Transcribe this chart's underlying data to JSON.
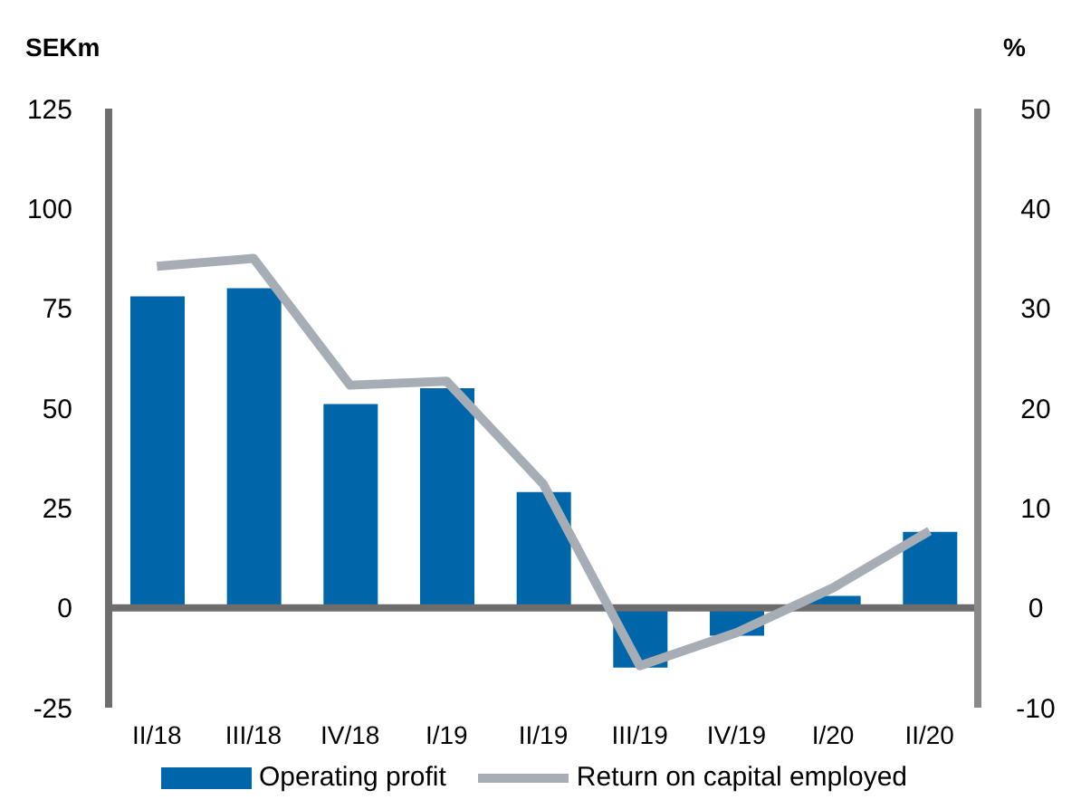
{
  "chart_data": {
    "type": "bar",
    "categories": [
      "II/18",
      "III/18",
      "IV/18",
      "I/19",
      "II/19",
      "III/19",
      "IV/19",
      "I/20",
      "II/20"
    ],
    "series": [
      {
        "name": "Operating profit",
        "color": "#0066aa",
        "values": [
          78,
          80,
          51,
          55,
          29,
          -15,
          -7,
          3,
          19
        ]
      },
      {
        "name": "Return on capital employed",
        "type": "line",
        "axis": "y2",
        "color": "#a6adb4",
        "values": [
          34.2,
          35,
          22.3,
          22.7,
          12.4,
          -5.8,
          -2.5,
          2,
          7.7
        ]
      }
    ],
    "ylabel": "SEKm",
    "y2label": "%",
    "ylim": [
      -25,
      125
    ],
    "yticks": [
      -25,
      0,
      25,
      50,
      75,
      100,
      125
    ],
    "y2lim": [
      -10,
      50
    ],
    "y2ticks": [
      -10,
      0,
      10,
      20,
      30,
      40,
      50
    ],
    "ref_lines": [
      {
        "axis": "y",
        "value": 0,
        "color": "#6d6d6d"
      }
    ],
    "grid": false,
    "legend": "bottom",
    "marker": "none",
    "line_style": "solid"
  }
}
